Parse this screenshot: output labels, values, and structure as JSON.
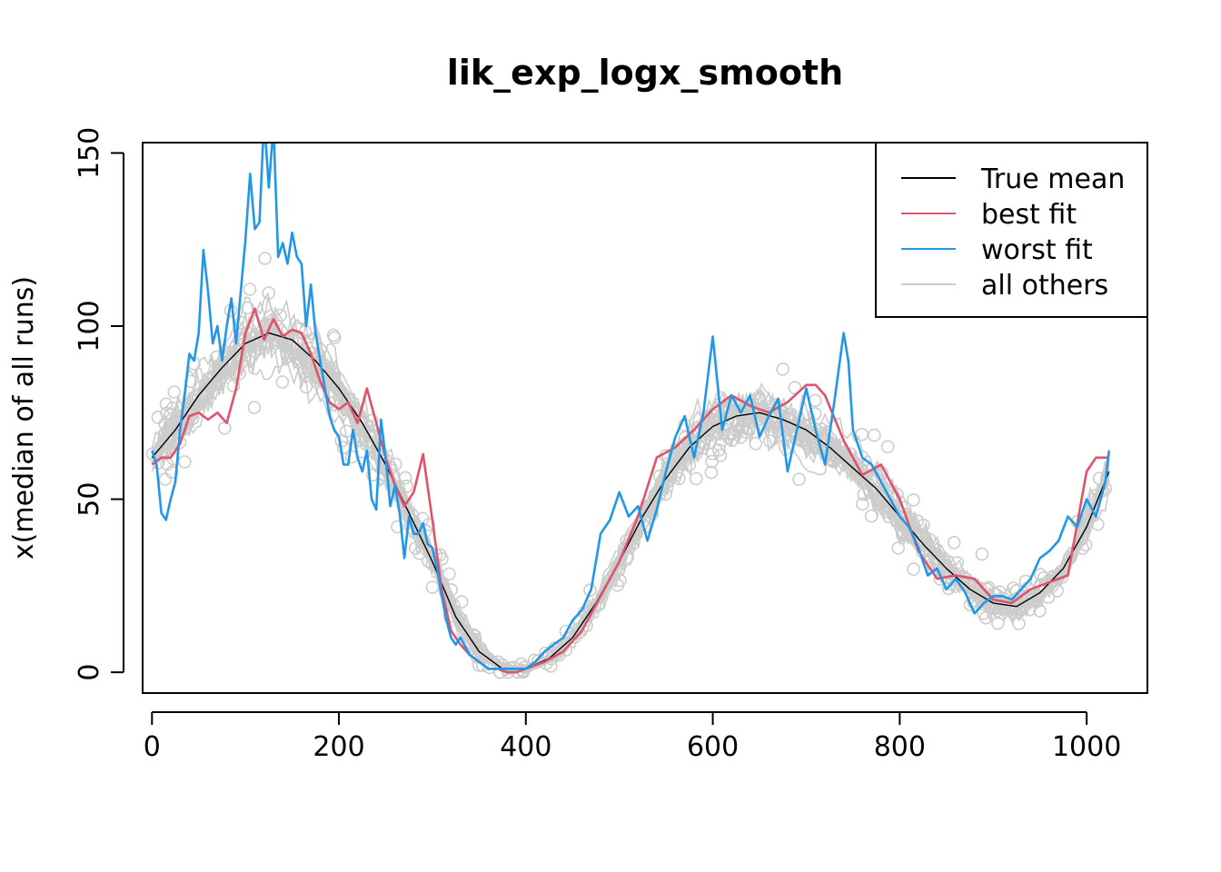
{
  "chart_data": {
    "type": "line",
    "title": "lik_exp_logx_smooth",
    "xlabel": "",
    "ylabel": "x(median of all runs)",
    "xlim": [
      -10,
      1065
    ],
    "ylim": [
      -6,
      153
    ],
    "x_ticks": [
      "0",
      "200",
      "400",
      "600",
      "800",
      "1000"
    ],
    "y_ticks": [
      "0",
      "50",
      "100",
      "150"
    ],
    "grid": false,
    "legend_position": "top-right",
    "legend": [
      {
        "label": "True mean",
        "color": "#000000"
      },
      {
        "label": "best fit",
        "color": "#DF536B"
      },
      {
        "label": "worst fit",
        "color": "#2297E6"
      },
      {
        "label": "all others",
        "color": "#CCCCCC"
      }
    ],
    "series": [
      {
        "name": "True mean",
        "color": "#000000",
        "x": [
          0,
          25,
          50,
          75,
          100,
          125,
          150,
          175,
          200,
          225,
          250,
          275,
          300,
          325,
          350,
          375,
          400,
          425,
          450,
          475,
          500,
          525,
          550,
          575,
          600,
          625,
          650,
          675,
          700,
          725,
          750,
          775,
          800,
          825,
          850,
          875,
          900,
          925,
          950,
          975,
          1000,
          1024
        ],
        "y": [
          62,
          70,
          80,
          88,
          95,
          98,
          96,
          90,
          82,
          72,
          60,
          46,
          32,
          16,
          6,
          1,
          1,
          4,
          10,
          20,
          32,
          45,
          56,
          65,
          71,
          74,
          75,
          73,
          70,
          65,
          59,
          53,
          45,
          37,
          30,
          24,
          20,
          19,
          23,
          30,
          42,
          58
        ]
      },
      {
        "name": "best fit",
        "color": "#DF536B",
        "x": [
          0,
          10,
          20,
          30,
          40,
          50,
          60,
          70,
          80,
          90,
          100,
          110,
          120,
          130,
          140,
          150,
          160,
          170,
          180,
          190,
          200,
          210,
          220,
          230,
          240,
          250,
          260,
          270,
          280,
          290,
          300,
          310,
          320,
          330,
          340,
          350,
          360,
          370,
          380,
          390,
          400,
          420,
          440,
          460,
          480,
          500,
          520,
          540,
          560,
          580,
          600,
          620,
          640,
          660,
          680,
          700,
          710,
          720,
          740,
          760,
          780,
          800,
          820,
          840,
          860,
          880,
          900,
          920,
          940,
          960,
          980,
          1000,
          1010,
          1024
        ],
        "y": [
          60,
          62,
          62,
          66,
          74,
          75,
          73,
          75,
          72,
          82,
          98,
          105,
          96,
          102,
          97,
          99,
          98,
          92,
          84,
          78,
          76,
          78,
          72,
          82,
          72,
          62,
          54,
          48,
          52,
          63,
          44,
          24,
          12,
          8,
          5,
          3,
          1,
          1,
          0,
          0,
          1,
          3,
          6,
          12,
          22,
          32,
          45,
          62,
          65,
          70,
          76,
          80,
          77,
          75,
          78,
          83,
          83,
          80,
          67,
          57,
          60,
          50,
          35,
          27,
          28,
          27,
          21,
          20,
          24,
          26,
          28,
          58,
          62,
          62
        ]
      },
      {
        "name": "worst fit",
        "color": "#2297E6",
        "x": [
          0,
          5,
          10,
          15,
          20,
          25,
          30,
          35,
          40,
          45,
          50,
          55,
          60,
          65,
          70,
          75,
          80,
          85,
          90,
          95,
          100,
          105,
          110,
          115,
          120,
          125,
          130,
          135,
          140,
          145,
          150,
          155,
          160,
          165,
          170,
          175,
          180,
          185,
          190,
          195,
          200,
          205,
          210,
          215,
          220,
          225,
          230,
          235,
          240,
          245,
          250,
          255,
          260,
          265,
          270,
          275,
          280,
          285,
          290,
          295,
          300,
          305,
          310,
          315,
          320,
          325,
          330,
          340,
          350,
          360,
          370,
          380,
          390,
          400,
          410,
          420,
          430,
          440,
          450,
          460,
          470,
          480,
          490,
          500,
          510,
          520,
          530,
          540,
          550,
          560,
          570,
          580,
          590,
          600,
          610,
          620,
          630,
          640,
          650,
          660,
          670,
          680,
          690,
          700,
          710,
          720,
          730,
          740,
          745,
          750,
          760,
          770,
          780,
          790,
          800,
          810,
          820,
          830,
          840,
          850,
          860,
          870,
          880,
          890,
          900,
          910,
          920,
          930,
          940,
          950,
          960,
          970,
          980,
          990,
          1000,
          1010,
          1020,
          1024
        ],
        "y": [
          64,
          60,
          46,
          44,
          50,
          55,
          70,
          80,
          92,
          90,
          98,
          122,
          110,
          95,
          100,
          90,
          100,
          108,
          95,
          110,
          125,
          144,
          128,
          130,
          160,
          140,
          158,
          120,
          124,
          118,
          127,
          120,
          118,
          100,
          112,
          98,
          90,
          82,
          74,
          70,
          68,
          60,
          60,
          70,
          62,
          58,
          64,
          50,
          47,
          73,
          62,
          48,
          54,
          46,
          33,
          45,
          40,
          40,
          43,
          37,
          36,
          30,
          22,
          15,
          10,
          8,
          10,
          5,
          3,
          1,
          1,
          1,
          1,
          1,
          3,
          6,
          8,
          10,
          15,
          18,
          24,
          40,
          44,
          52,
          45,
          48,
          38,
          47,
          58,
          68,
          74,
          62,
          75,
          97,
          70,
          80,
          75,
          80,
          68,
          74,
          79,
          58,
          70,
          82,
          70,
          60,
          78,
          98,
          90,
          70,
          62,
          60,
          55,
          50,
          45,
          42,
          36,
          28,
          30,
          24,
          27,
          23,
          17,
          20,
          22,
          22,
          21,
          24,
          27,
          33,
          35,
          38,
          45,
          42,
          50,
          45,
          55,
          64
        ]
      }
    ],
    "others": {
      "name": "all others",
      "color": "#CCCCCC",
      "count": 24
    }
  }
}
